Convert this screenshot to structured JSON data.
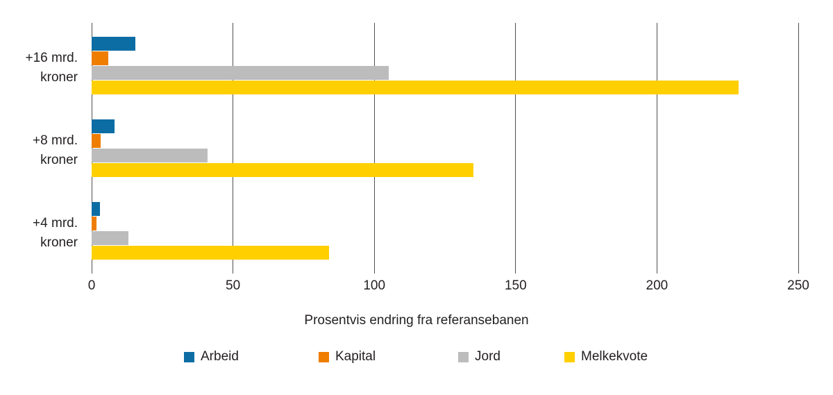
{
  "chart_data": {
    "type": "bar",
    "orientation": "horizontal",
    "title": "",
    "xlabel": "Prosentvis endring fra referansebanen",
    "ylabel": "",
    "xlim": [
      0,
      250
    ],
    "x_ticks": [
      0,
      50,
      100,
      150,
      200,
      250
    ],
    "grid": true,
    "legend_position": "bottom",
    "categories": [
      "+16 mrd.\nkroner",
      "+8 mrd.\nkroner",
      "+4 mrd.\nkroner"
    ],
    "series": [
      {
        "name": "Arbeid",
        "color": "#0c6da4",
        "values": [
          15.5,
          8,
          3
        ]
      },
      {
        "name": "Kapital",
        "color": "#ef7d00",
        "values": [
          6,
          3.3,
          1.6
        ]
      },
      {
        "name": "Jord",
        "color": "#bcbcbc",
        "values": [
          105,
          41,
          13
        ]
      },
      {
        "name": "Melkekvote",
        "color": "#ffcf00",
        "values": [
          229,
          135,
          84
        ]
      }
    ],
    "colors": {
      "grid": "#4f4f51",
      "text": "#231f20",
      "background": "#ffffff"
    }
  }
}
